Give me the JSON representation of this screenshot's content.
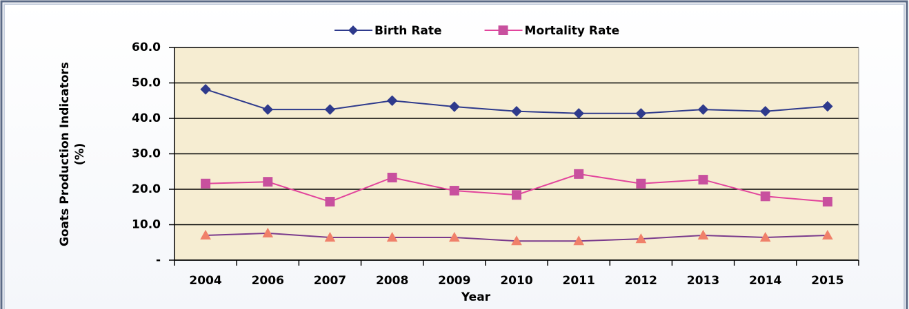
{
  "chart_data": {
    "type": "line",
    "categories": [
      "2004",
      "2006",
      "2007",
      "2008",
      "2009",
      "2010",
      "2011",
      "2012",
      "2013",
      "2014",
      "2015"
    ],
    "series": [
      {
        "name": "Birth Rate",
        "color": "#2e3a8c",
        "marker": "diamond",
        "marker_color": "#2e3a8c",
        "values": [
          48.2,
          42.5,
          42.5,
          45,
          43.3,
          42,
          41.4,
          41.4,
          42.5,
          42,
          43.4
        ]
      },
      {
        "name": "Mortality Rate",
        "color": "#e2449c",
        "marker": "square",
        "marker_color": "#c8509e",
        "values": [
          21.6,
          22.1,
          16.5,
          23.3,
          19.6,
          18.4,
          24.3,
          21.6,
          22.7,
          18,
          16.5
        ]
      },
      {
        "color": "#7a3a8c",
        "marker": "triangle",
        "marker_color": "#f0806a",
        "values": [
          7,
          7.6,
          6.4,
          6.4,
          6.4,
          5.4,
          5.4,
          6,
          7,
          6.4,
          7
        ]
      }
    ],
    "ylabel": [
      "Goats Production Indicators",
      "(%)"
    ],
    "xlabel": "Year",
    "ylim": [
      0,
      60
    ],
    "yticks": [
      {
        "value": 0,
        "label": "-"
      },
      {
        "value": 10,
        "label": "10.0"
      },
      {
        "value": 20,
        "label": "20.0"
      },
      {
        "value": 30,
        "label": "30.0"
      },
      {
        "value": 40,
        "label": "40.0"
      },
      {
        "value": 50,
        "label": "50.0"
      },
      {
        "value": 60,
        "label": "60.0"
      }
    ],
    "grid": true,
    "legend": "top"
  }
}
